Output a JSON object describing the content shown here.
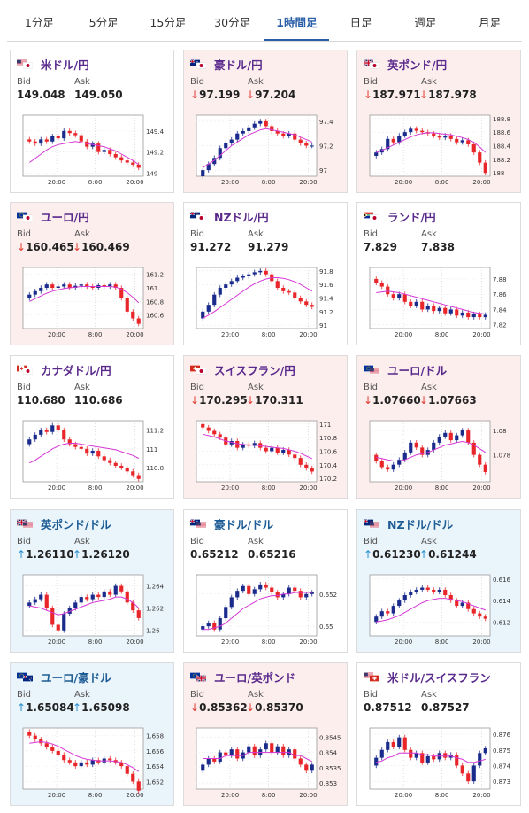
{
  "tabs": [
    "1分足",
    "5分足",
    "15分足",
    "30分足",
    "1時間足",
    "日足",
    "週足",
    "月足"
  ],
  "active_tab": 4,
  "labels": {
    "bid": "Bid",
    "ask": "Ask"
  },
  "colors": {
    "up_candle": "#1a2b8c",
    "down_candle": "#e8262a",
    "ma": "#d637d6",
    "down_arrow": "#e03a2f",
    "up_arrow": "#2a8fcf"
  },
  "chart_data": [
    {
      "type": "candlestick",
      "pair": "米ドル/円",
      "flags": [
        "us",
        "jp"
      ],
      "trend": "neutral",
      "bid": "149.048",
      "ask": "149.050",
      "bid_arrow": "",
      "ask_arrow": "",
      "ylim": [
        148.97,
        149.55
      ],
      "yticks": [
        "149.4",
        "149.2",
        "149"
      ],
      "ytick_values": [
        149.4,
        149.2,
        149.0
      ],
      "xticks": [
        "20:00",
        "8:00",
        "20:00"
      ],
      "close": [
        149.3,
        149.28,
        149.32,
        149.3,
        149.35,
        149.33,
        149.4,
        149.38,
        149.36,
        149.3,
        149.25,
        149.28,
        149.2,
        149.22,
        149.18,
        149.15,
        149.12,
        149.1,
        149.08,
        149.05
      ],
      "ma": [
        149.1,
        149.14,
        149.18,
        149.22,
        149.25,
        149.27,
        149.28,
        149.29,
        149.3,
        149.29,
        149.28,
        149.27,
        149.26,
        149.25,
        149.23,
        149.21,
        149.18,
        149.15,
        149.12,
        149.08
      ]
    },
    {
      "type": "candlestick",
      "pair": "豪ドル/円",
      "flags": [
        "au",
        "jp"
      ],
      "trend": "down",
      "bid": "97.199",
      "ask": "97.204",
      "bid_arrow": "↓",
      "ask_arrow": "↓",
      "ylim": [
        96.95,
        97.45
      ],
      "yticks": [
        "97.4",
        "97.2",
        "97"
      ],
      "ytick_values": [
        97.4,
        97.2,
        97.0
      ],
      "xticks": [
        "20:00",
        "8:00",
        "20:00"
      ],
      "close": [
        97.0,
        97.05,
        97.1,
        97.18,
        97.22,
        97.25,
        97.3,
        97.32,
        97.35,
        97.38,
        97.4,
        97.36,
        97.32,
        97.3,
        97.28,
        97.3,
        97.25,
        97.22,
        97.2,
        97.2
      ],
      "ma": [
        97.02,
        97.05,
        97.08,
        97.12,
        97.16,
        97.2,
        97.23,
        97.26,
        97.29,
        97.31,
        97.33,
        97.34,
        97.33,
        97.32,
        97.31,
        97.3,
        97.29,
        97.27,
        97.25,
        97.23
      ]
    },
    {
      "type": "candlestick",
      "pair": "英ポンド/円",
      "flags": [
        "gb",
        "jp"
      ],
      "trend": "down",
      "bid": "187.971",
      "ask": "187.978",
      "bid_arrow": "↓",
      "ask_arrow": "↓",
      "ylim": [
        187.95,
        188.85
      ],
      "yticks": [
        "188.8",
        "188.6",
        "188.4",
        "188.2",
        "188"
      ],
      "ytick_values": [
        188.8,
        188.6,
        188.4,
        188.2,
        188.0
      ],
      "xticks": [
        "20:00",
        "8:00",
        "20:00"
      ],
      "close": [
        188.3,
        188.35,
        188.5,
        188.45,
        188.55,
        188.6,
        188.65,
        188.62,
        188.6,
        188.58,
        188.55,
        188.52,
        188.55,
        188.5,
        188.45,
        188.48,
        188.42,
        188.3,
        188.15,
        188.0
      ],
      "ma": [
        188.3,
        188.33,
        188.37,
        188.41,
        188.45,
        188.49,
        188.53,
        188.56,
        188.58,
        188.59,
        188.59,
        188.58,
        188.57,
        188.56,
        188.54,
        188.52,
        188.49,
        188.45,
        188.38,
        188.3
      ]
    },
    {
      "type": "candlestick",
      "pair": "ユーロ/円",
      "flags": [
        "eu",
        "jp"
      ],
      "trend": "down",
      "bid": "160.465",
      "ask": "160.469",
      "bid_arrow": "↓",
      "ask_arrow": "↓",
      "ylim": [
        160.4,
        161.3
      ],
      "yticks": [
        "161.2",
        "161",
        "160.8",
        "160.6"
      ],
      "ytick_values": [
        161.2,
        161.0,
        160.8,
        160.6
      ],
      "xticks": [
        "20:00",
        "8:00",
        "20:00"
      ],
      "close": [
        160.9,
        160.95,
        161.0,
        161.05,
        161.0,
        161.02,
        161.05,
        161.0,
        161.03,
        161.05,
        161.02,
        161.0,
        161.04,
        161.02,
        161.05,
        161.0,
        160.85,
        160.65,
        160.55,
        160.47
      ],
      "ma": [
        160.8,
        160.84,
        160.88,
        160.92,
        160.95,
        160.97,
        160.99,
        161.0,
        161.01,
        161.02,
        161.02,
        161.02,
        161.02,
        161.02,
        161.02,
        161.01,
        160.98,
        160.93,
        160.86,
        160.78
      ]
    },
    {
      "type": "candlestick",
      "pair": "NZドル/円",
      "flags": [
        "nz",
        "jp"
      ],
      "trend": "neutral",
      "bid": "91.272",
      "ask": "91.279",
      "bid_arrow": "",
      "ask_arrow": "",
      "ylim": [
        90.95,
        91.85
      ],
      "yticks": [
        "91.8",
        "91.6",
        "91.4",
        "91.2",
        "91"
      ],
      "ytick_values": [
        91.8,
        91.6,
        91.4,
        91.2,
        91.0
      ],
      "xticks": [
        "20:00",
        "8:00",
        "20:00"
      ],
      "close": [
        91.2,
        91.3,
        91.45,
        91.55,
        91.6,
        91.65,
        91.7,
        91.72,
        91.75,
        91.78,
        91.8,
        91.75,
        91.65,
        91.55,
        91.5,
        91.48,
        91.4,
        91.35,
        91.3,
        91.27
      ],
      "ma": [
        91.1,
        91.15,
        91.2,
        91.26,
        91.32,
        91.38,
        91.44,
        91.5,
        91.56,
        91.61,
        91.65,
        91.68,
        91.7,
        91.7,
        91.69,
        91.67,
        91.64,
        91.6,
        91.55,
        91.5
      ]
    },
    {
      "type": "candlestick",
      "pair": "ランド/円",
      "flags": [
        "za",
        "jp"
      ],
      "trend": "neutral",
      "bid": "7.829",
      "ask": "7.838",
      "bid_arrow": "",
      "ask_arrow": "",
      "ylim": [
        7.815,
        7.895
      ],
      "yticks": [
        "7.88",
        "7.86",
        "7.84",
        "7.82"
      ],
      "ytick_values": [
        7.88,
        7.86,
        7.84,
        7.82
      ],
      "xticks": [
        "20:00",
        "8:00",
        "20:00"
      ],
      "close": [
        7.875,
        7.87,
        7.86,
        7.855,
        7.86,
        7.85,
        7.845,
        7.85,
        7.84,
        7.845,
        7.838,
        7.842,
        7.835,
        7.84,
        7.832,
        7.836,
        7.83,
        7.834,
        7.83,
        7.833
      ],
      "ma": [
        7.862,
        7.863,
        7.864,
        7.863,
        7.862,
        7.86,
        7.858,
        7.856,
        7.854,
        7.852,
        7.85,
        7.848,
        7.846,
        7.844,
        7.842,
        7.84,
        7.838,
        7.836,
        7.835,
        7.834
      ]
    },
    {
      "type": "candlestick",
      "pair": "カナダドル/円",
      "flags": [
        "ca",
        "jp"
      ],
      "trend": "neutral",
      "bid": "110.680",
      "ask": "110.686",
      "bid_arrow": "",
      "ask_arrow": "",
      "ylim": [
        110.65,
        111.3
      ],
      "yticks": [
        "111.2",
        "111",
        "110.8"
      ],
      "ytick_values": [
        111.2,
        111.0,
        110.8
      ],
      "xticks": [
        "20:00",
        "8:00",
        "20:00"
      ],
      "close": [
        111.1,
        111.15,
        111.2,
        111.18,
        111.25,
        111.2,
        111.1,
        111.05,
        111.02,
        111.0,
        110.95,
        110.98,
        110.92,
        110.88,
        110.85,
        110.82,
        110.8,
        110.76,
        110.72,
        110.68
      ],
      "ma": [
        110.85,
        110.88,
        110.92,
        110.96,
        111.0,
        111.03,
        111.05,
        111.06,
        111.06,
        111.05,
        111.04,
        111.03,
        111.02,
        111.01,
        111.0,
        110.99,
        110.97,
        110.95,
        110.93,
        110.9
      ]
    },
    {
      "type": "candlestick",
      "pair": "スイスフラン/円",
      "flags": [
        "ch",
        "jp"
      ],
      "trend": "down",
      "bid": "170.295",
      "ask": "170.311",
      "bid_arrow": "↓",
      "ask_arrow": "↓",
      "ylim": [
        170.15,
        171.05
      ],
      "yticks": [
        "171",
        "170.8",
        "170.6",
        "170.4",
        "170.2"
      ],
      "ytick_values": [
        171.0,
        170.8,
        170.6,
        170.4,
        170.2
      ],
      "xticks": [
        "20:00",
        "8:00",
        "20:00"
      ],
      "close": [
        170.95,
        170.9,
        170.85,
        170.8,
        170.7,
        170.75,
        170.65,
        170.7,
        170.68,
        170.72,
        170.65,
        170.6,
        170.65,
        170.58,
        170.62,
        170.55,
        170.5,
        170.4,
        170.35,
        170.3
      ],
      "ma": [
        170.85,
        170.83,
        170.81,
        170.78,
        170.75,
        170.73,
        170.71,
        170.7,
        170.69,
        170.69,
        170.68,
        170.67,
        170.66,
        170.65,
        170.64,
        170.62,
        170.6,
        170.57,
        170.53,
        170.49
      ]
    },
    {
      "type": "candlestick",
      "pair": "ユーロ/ドル",
      "flags": [
        "eu",
        "us"
      ],
      "trend": "down",
      "bid": "1.07660",
      "ask": "1.07663",
      "bid_arrow": "↓",
      "ask_arrow": "↓",
      "ylim": [
        1.0758,
        1.0808
      ],
      "yticks": [
        "1.08",
        "1.078"
      ],
      "ytick_values": [
        1.08,
        1.078
      ],
      "xticks": [
        "20:00",
        "8:00",
        "20:00"
      ],
      "close": [
        1.0775,
        1.077,
        1.0768,
        1.0772,
        1.0776,
        1.0782,
        1.079,
        1.0786,
        1.078,
        1.0784,
        1.079,
        1.0795,
        1.0798,
        1.0792,
        1.0796,
        1.08,
        1.079,
        1.078,
        1.0772,
        1.0766
      ],
      "ma": [
        1.0778,
        1.0777,
        1.0776,
        1.0775,
        1.0775,
        1.0776,
        1.0778,
        1.078,
        1.0781,
        1.0782,
        1.0784,
        1.0786,
        1.0788,
        1.0789,
        1.079,
        1.0791,
        1.079,
        1.0788,
        1.0785,
        1.0782
      ]
    },
    {
      "type": "candlestick",
      "pair": "英ポンド/ドル",
      "flags": [
        "gb",
        "us"
      ],
      "trend": "up",
      "bid": "1.26110",
      "ask": "1.26120",
      "bid_arrow": "↑",
      "ask_arrow": "↑",
      "ylim": [
        1.2595,
        1.265
      ],
      "yticks": [
        "1.264",
        "1.262",
        "1.26"
      ],
      "ytick_values": [
        1.264,
        1.262,
        1.26
      ],
      "xticks": [
        "20:00",
        "8:00",
        "20:00"
      ],
      "close": [
        1.2625,
        1.2628,
        1.2632,
        1.262,
        1.2605,
        1.26,
        1.2615,
        1.262,
        1.2625,
        1.263,
        1.2628,
        1.2632,
        1.263,
        1.2635,
        1.2632,
        1.264,
        1.2635,
        1.2625,
        1.2618,
        1.2611
      ],
      "ma": [
        1.2622,
        1.2621,
        1.262,
        1.2618,
        1.2616,
        1.2614,
        1.2615,
        1.2617,
        1.2619,
        1.2621,
        1.2623,
        1.2625,
        1.2626,
        1.2627,
        1.2628,
        1.263,
        1.263,
        1.2628,
        1.2625,
        1.262
      ]
    },
    {
      "type": "candlestick",
      "pair": "豪ドル/ドル",
      "flags": [
        "au",
        "us"
      ],
      "trend": "neutral",
      "bid": "0.65212",
      "ask": "0.65216",
      "bid_arrow": "",
      "ask_arrow": "",
      "ylim": [
        0.6494,
        0.6532
      ],
      "yticks": [
        "0.652",
        "0.65"
      ],
      "ytick_values": [
        0.652,
        0.65
      ],
      "xticks": [
        "20:00",
        "8:00",
        "20:00"
      ],
      "close": [
        0.65,
        0.6502,
        0.6498,
        0.6505,
        0.6512,
        0.6518,
        0.6522,
        0.6525,
        0.652,
        0.6523,
        0.6526,
        0.6524,
        0.6521,
        0.6518,
        0.652,
        0.6524,
        0.6522,
        0.6518,
        0.652,
        0.6521
      ],
      "ma": [
        0.6498,
        0.6498,
        0.6499,
        0.65,
        0.6502,
        0.6505,
        0.6508,
        0.6511,
        0.6513,
        0.6515,
        0.6517,
        0.6518,
        0.6519,
        0.6519,
        0.652,
        0.652,
        0.6521,
        0.6521,
        0.6521,
        0.6521
      ]
    },
    {
      "type": "candlestick",
      "pair": "NZドル/ドル",
      "flags": [
        "nz",
        "us"
      ],
      "trend": "up",
      "bid": "0.61230",
      "ask": "0.61244",
      "bid_arrow": "↑",
      "ask_arrow": "↑",
      "ylim": [
        0.6107,
        0.6164
      ],
      "yticks": [
        "0.616",
        "0.614",
        "0.612"
      ],
      "ytick_values": [
        0.616,
        0.614,
        0.612
      ],
      "xticks": [
        "20:00",
        "8:00",
        "20:00"
      ],
      "close": [
        0.6125,
        0.613,
        0.6128,
        0.6135,
        0.614,
        0.6145,
        0.6148,
        0.615,
        0.6152,
        0.615,
        0.6148,
        0.615,
        0.6145,
        0.614,
        0.6135,
        0.6138,
        0.6132,
        0.6128,
        0.6125,
        0.6123
      ],
      "ma": [
        0.612,
        0.6121,
        0.6122,
        0.6124,
        0.6126,
        0.6129,
        0.6132,
        0.6135,
        0.6138,
        0.614,
        0.6141,
        0.6142,
        0.6142,
        0.6141,
        0.614,
        0.6139,
        0.6137,
        0.6135,
        0.6133,
        0.6131
      ]
    },
    {
      "type": "candlestick",
      "pair": "ユーロ/豪ドル",
      "flags": [
        "eu",
        "au"
      ],
      "trend": "up",
      "bid": "1.65084",
      "ask": "1.65098",
      "bid_arrow": "↑",
      "ask_arrow": "↑",
      "ylim": [
        1.651,
        1.659
      ],
      "yticks": [
        "1.658",
        "1.656",
        "1.654",
        "1.652"
      ],
      "ytick_values": [
        1.658,
        1.656,
        1.654,
        1.652
      ],
      "xticks": [
        "20:00",
        "8:00",
        "20:00"
      ],
      "close": [
        1.658,
        1.6575,
        1.657,
        1.6565,
        1.656,
        1.6555,
        1.6548,
        1.6545,
        1.654,
        1.6545,
        1.6542,
        1.6548,
        1.6545,
        1.655,
        1.6548,
        1.6545,
        1.654,
        1.653,
        1.652,
        1.6508
      ],
      "ma": [
        1.657,
        1.6571,
        1.6572,
        1.6571,
        1.6569,
        1.6566,
        1.6562,
        1.6558,
        1.6554,
        1.6551,
        1.6549,
        1.6548,
        1.6547,
        1.6547,
        1.6547,
        1.6546,
        1.6545,
        1.6542,
        1.6538,
        1.6533
      ]
    },
    {
      "type": "candlestick",
      "pair": "ユーロ/英ポンド",
      "flags": [
        "eu",
        "gb"
      ],
      "trend": "down",
      "bid": "0.85362",
      "ask": "0.85370",
      "bid_arrow": "↓",
      "ask_arrow": "↓",
      "ylim": [
        0.8528,
        0.8548
      ],
      "yticks": [
        "0.8545",
        "0.854",
        "0.8535",
        "0.853"
      ],
      "ytick_values": [
        0.8545,
        0.854,
        0.8535,
        0.853
      ],
      "xticks": [
        "20:00",
        "8:00",
        "20:00"
      ],
      "close": [
        0.8536,
        0.8538,
        0.8537,
        0.854,
        0.8539,
        0.8541,
        0.8538,
        0.854,
        0.8542,
        0.8539,
        0.8541,
        0.8543,
        0.854,
        0.8542,
        0.8539,
        0.8541,
        0.8538,
        0.8536,
        0.8534,
        0.8536
      ],
      "ma": [
        0.8538,
        0.8538,
        0.8538,
        0.8538,
        0.8539,
        0.8539,
        0.8539,
        0.8539,
        0.854,
        0.854,
        0.854,
        0.854,
        0.854,
        0.854,
        0.854,
        0.854,
        0.8539,
        0.8539,
        0.8538,
        0.8537
      ]
    },
    {
      "type": "candlestick",
      "pair": "米ドル/スイスフラン",
      "flags": [
        "us",
        "ch"
      ],
      "trend": "neutral",
      "bid": "0.87512",
      "ask": "0.87527",
      "bid_arrow": "",
      "ask_arrow": "",
      "ylim": [
        0.8725,
        0.8764
      ],
      "yticks": [
        "0.876",
        "0.875",
        "0.874",
        "0.873"
      ],
      "ytick_values": [
        0.876,
        0.875,
        0.874,
        0.873
      ],
      "xticks": [
        "20:00",
        "8:00",
        "20:00"
      ],
      "close": [
        0.8745,
        0.875,
        0.8755,
        0.8752,
        0.8758,
        0.875,
        0.8745,
        0.8748,
        0.8742,
        0.8746,
        0.8744,
        0.8748,
        0.8745,
        0.8747,
        0.874,
        0.8735,
        0.873,
        0.874,
        0.8748,
        0.8751
      ],
      "ma": [
        0.8742,
        0.8743,
        0.8745,
        0.8746,
        0.8748,
        0.8748,
        0.8748,
        0.8748,
        0.8747,
        0.8747,
        0.8746,
        0.8746,
        0.8746,
        0.8746,
        0.8745,
        0.8744,
        0.8742,
        0.8742,
        0.8743,
        0.8744
      ]
    }
  ]
}
